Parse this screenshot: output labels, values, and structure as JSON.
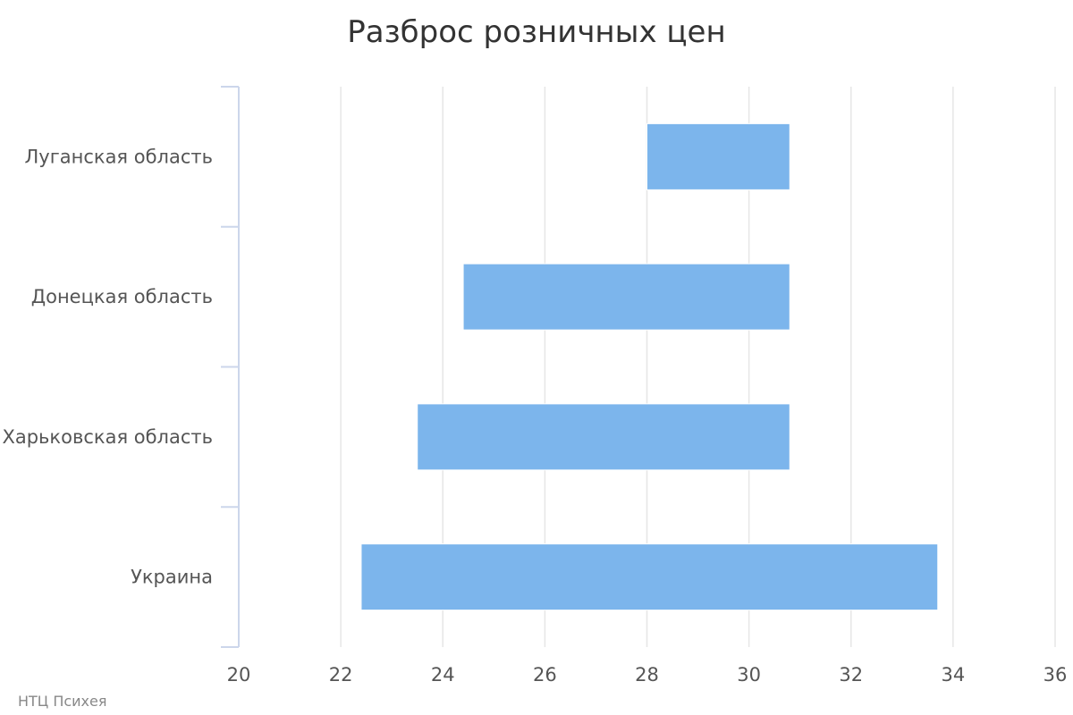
{
  "chart_data": {
    "type": "bar",
    "orientation": "horizontal",
    "variant": "range",
    "title": "Разброс розничных цен",
    "categories": [
      "Луганская область",
      "Донецкая область",
      "Харьковская область",
      "Украина"
    ],
    "series": [
      {
        "ranges": [
          [
            28.0,
            30.8
          ],
          [
            24.4,
            30.8
          ],
          [
            23.5,
            30.8
          ],
          [
            22.4,
            33.7
          ]
        ]
      }
    ],
    "xlim": [
      20,
      36
    ],
    "xticks": [
      20,
      22,
      24,
      26,
      28,
      30,
      32,
      34,
      36
    ],
    "grid": true,
    "legend": "none",
    "colors": {
      "bar": "#7cb5ec",
      "grid": "#e6e6e6",
      "axis": "#ccd6eb"
    }
  },
  "credits": "НТЦ Психея"
}
